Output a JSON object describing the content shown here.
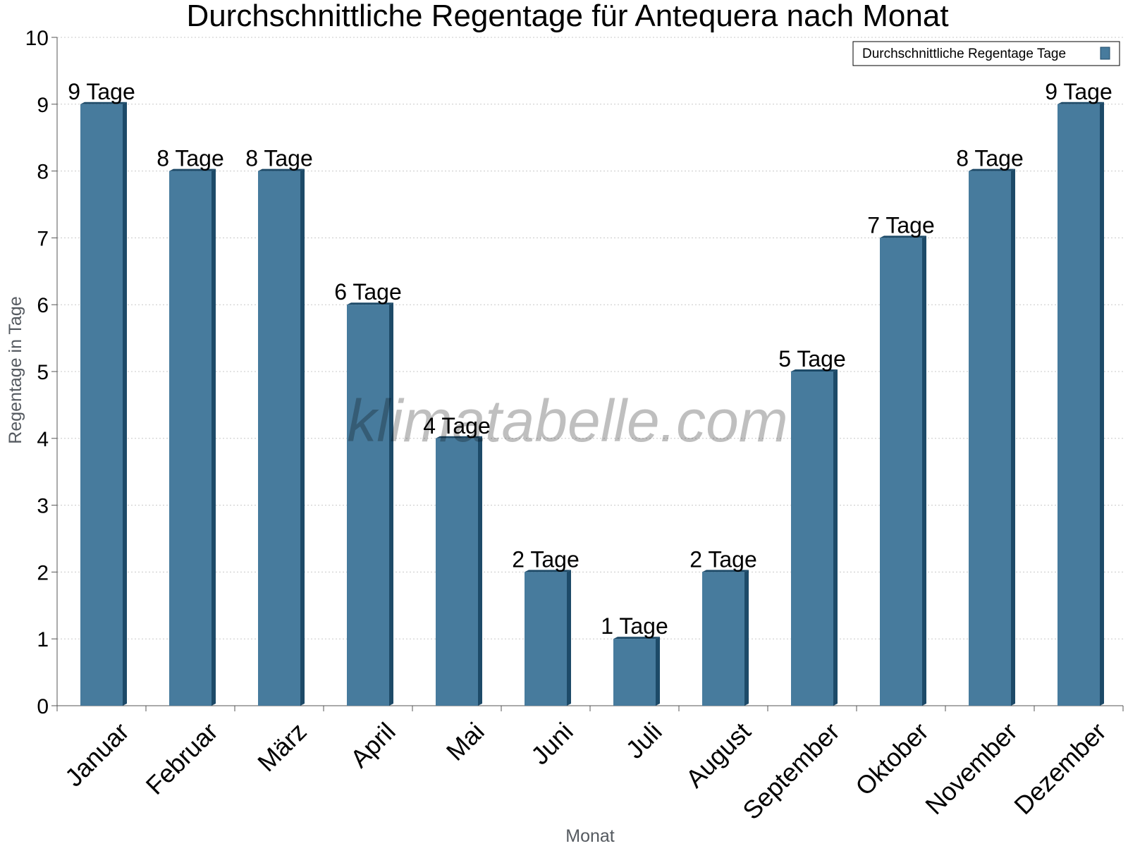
{
  "watermark": "klimatabelle.com",
  "colors": {
    "bar_front": "#477b9d",
    "bar_side": "#1d4a68",
    "bar_top": "#1d4a68",
    "grid": "#c8c8c8",
    "axis": "#555555"
  },
  "chart_data": {
    "type": "bar",
    "title": "Durchschnittliche Regentage für Antequera nach Monat",
    "xlabel": "Monat",
    "ylabel": "Regentage in Tage",
    "categories": [
      "Januar",
      "Februar",
      "März",
      "April",
      "Mai",
      "Juni",
      "Juli",
      "August",
      "September",
      "Oktober",
      "November",
      "Dezember"
    ],
    "series": [
      {
        "name": "Durchschnittliche Regentage Tage",
        "values": [
          9,
          8,
          8,
          6,
          4,
          2,
          1,
          2,
          5,
          7,
          8,
          9
        ],
        "labels": [
          "9 Tage",
          "8 Tage",
          "8 Tage",
          "6 Tage",
          "4 Tage",
          "2 Tage",
          "1 Tage",
          "2 Tage",
          "5 Tage",
          "7 Tage",
          "8 Tage",
          "9 Tage"
        ]
      }
    ],
    "ylim": [
      0,
      10
    ],
    "yticks": [
      "0",
      "1",
      "2",
      "3",
      "4",
      "5",
      "6",
      "7",
      "8",
      "9",
      "10"
    ],
    "grid": true,
    "legend_position": "top-right"
  }
}
